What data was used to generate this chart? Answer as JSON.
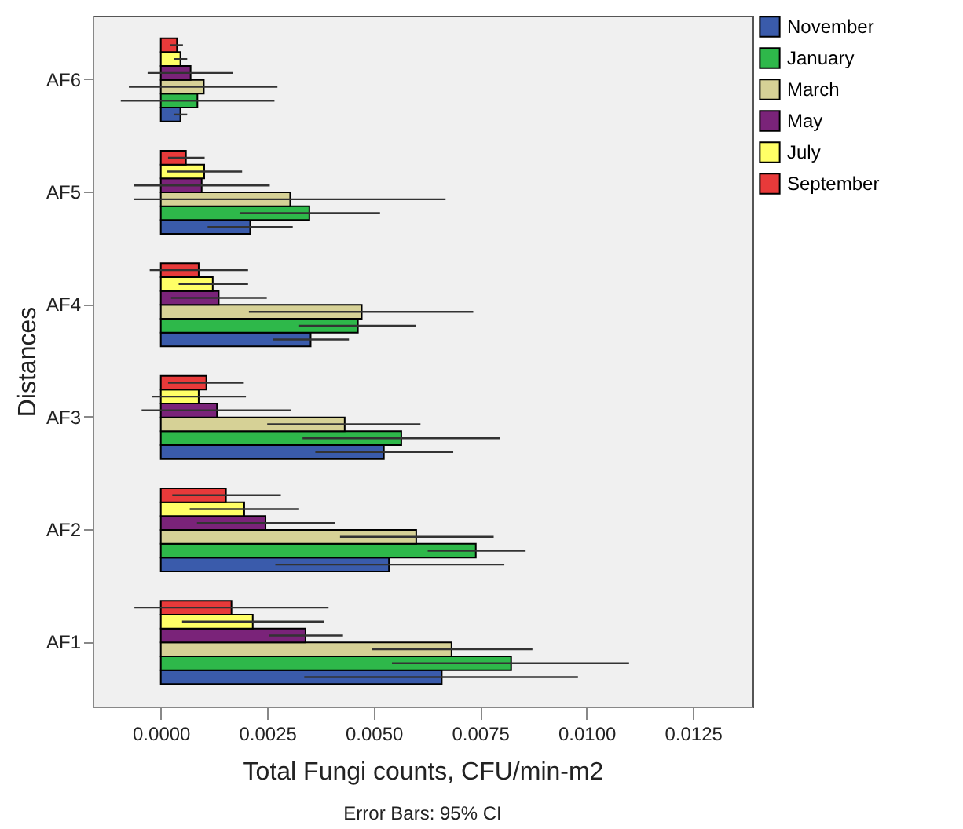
{
  "chart_data": {
    "type": "bar",
    "orientation": "horizontal",
    "xlabel": "Total Fungi counts, CFU/min-m2",
    "ylabel": "Distances",
    "annotations": [
      "Error Bars: 95% CI"
    ],
    "categories": [
      "AF6",
      "AF5",
      "AF4",
      "AF3",
      "AF2",
      "AF1"
    ],
    "xlim": [
      -0.0016,
      0.0139
    ],
    "xticks": [
      {
        "value": 0,
        "label": "0.0000"
      },
      {
        "value": 0.0025,
        "label": "0.0025"
      },
      {
        "value": 0.005,
        "label": "0.0050"
      },
      {
        "value": 0.0075,
        "label": "0.0075"
      },
      {
        "value": 0.01,
        "label": "0.0100"
      },
      {
        "value": 0.0125,
        "label": "0.0125"
      }
    ],
    "grid": false,
    "legend": "top right",
    "series": [
      {
        "name": "November",
        "color": "#3a5bab",
        "values": [
          0.00046,
          0.0021,
          0.00352,
          0.00524,
          0.00536,
          0.0066
        ],
        "errors": [
          [
            0.0003,
            0.00062
          ],
          [
            0.0011,
            0.0031
          ],
          [
            0.00264,
            0.00442
          ],
          [
            0.00363,
            0.00687
          ],
          [
            0.00269,
            0.00807
          ],
          [
            0.00337,
            0.0098
          ]
        ]
      },
      {
        "name": "January",
        "color": "#2eb84a",
        "values": [
          0.00086,
          0.00349,
          0.00463,
          0.00565,
          0.0074,
          0.00823
        ],
        "errors": [
          [
            -0.00094,
            0.00267
          ],
          [
            0.00185,
            0.00515
          ],
          [
            0.00325,
            0.006
          ],
          [
            0.00333,
            0.00796
          ],
          [
            0.00627,
            0.00857
          ],
          [
            0.00543,
            0.011
          ]
        ]
      },
      {
        "name": "March",
        "color": "#d6d196",
        "values": [
          0.00101,
          0.00304,
          0.00472,
          0.00432,
          0.006,
          0.00683
        ],
        "errors": [
          [
            -0.00075,
            0.00274
          ],
          [
            -0.00064,
            0.00669
          ],
          [
            0.00207,
            0.00734
          ],
          [
            0.0025,
            0.0061
          ],
          [
            0.00421,
            0.00782
          ],
          [
            0.00496,
            0.00873
          ]
        ]
      },
      {
        "name": "May",
        "color": "#7a2379",
        "values": [
          0.0007,
          0.00096,
          0.00136,
          0.00132,
          0.00246,
          0.0034
        ],
        "errors": [
          [
            -0.00031,
            0.0017
          ],
          [
            -0.00064,
            0.00256
          ],
          [
            0.00024,
            0.00249
          ],
          [
            -0.00045,
            0.00305
          ],
          [
            0.00085,
            0.00409
          ],
          [
            0.00254,
            0.00428
          ]
        ]
      },
      {
        "name": "July",
        "color": "#ffff66",
        "values": [
          0.00046,
          0.00102,
          0.00122,
          0.00089,
          0.00196,
          0.00216
        ],
        "errors": [
          [
            0.00031,
            0.00062
          ],
          [
            0.00015,
            0.00191
          ],
          [
            0.00042,
            0.00205
          ],
          [
            -0.0002,
            0.002
          ],
          [
            0.00068,
            0.00325
          ],
          [
            0.0005,
            0.00383
          ]
        ]
      },
      {
        "name": "September",
        "color": "#e83a3a",
        "values": [
          0.00038,
          0.00059,
          0.00089,
          0.00107,
          0.00153,
          0.00166
        ],
        "errors": [
          [
            0.00021,
            0.00052
          ],
          [
            0.00017,
            0.00103
          ],
          [
            -0.00026,
            0.00205
          ],
          [
            0.00017,
            0.00195
          ],
          [
            0.00027,
            0.00282
          ],
          [
            -0.00062,
            0.00394
          ]
        ]
      }
    ]
  }
}
